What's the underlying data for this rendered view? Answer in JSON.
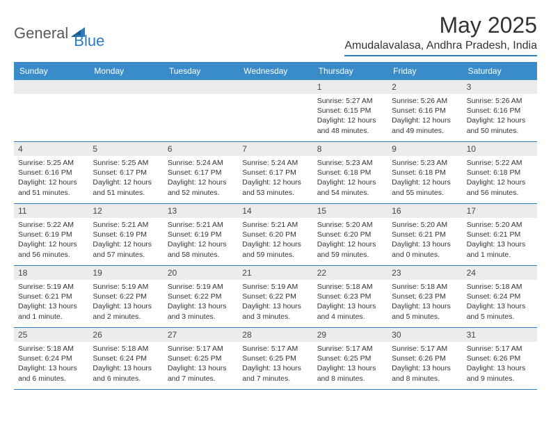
{
  "logo": {
    "general": "General",
    "blue": "Blue"
  },
  "title": "May 2025",
  "location": "Amudalavalasa, Andhra Pradesh, India",
  "dayNames": [
    "Sunday",
    "Monday",
    "Tuesday",
    "Wednesday",
    "Thursday",
    "Friday",
    "Saturday"
  ],
  "colors": {
    "headerBlue": "#3a8cc9",
    "accentBlue": "#2b7bbf",
    "grayBar": "#ececec",
    "text": "#333333",
    "logoGray": "#5a5a5a"
  },
  "weeks": [
    [
      {
        "n": "",
        "sunrise": "",
        "sunset": "",
        "daylight": ""
      },
      {
        "n": "",
        "sunrise": "",
        "sunset": "",
        "daylight": ""
      },
      {
        "n": "",
        "sunrise": "",
        "sunset": "",
        "daylight": ""
      },
      {
        "n": "",
        "sunrise": "",
        "sunset": "",
        "daylight": ""
      },
      {
        "n": "1",
        "sunrise": "Sunrise: 5:27 AM",
        "sunset": "Sunset: 6:15 PM",
        "daylight": "Daylight: 12 hours and 48 minutes."
      },
      {
        "n": "2",
        "sunrise": "Sunrise: 5:26 AM",
        "sunset": "Sunset: 6:16 PM",
        "daylight": "Daylight: 12 hours and 49 minutes."
      },
      {
        "n": "3",
        "sunrise": "Sunrise: 5:26 AM",
        "sunset": "Sunset: 6:16 PM",
        "daylight": "Daylight: 12 hours and 50 minutes."
      }
    ],
    [
      {
        "n": "4",
        "sunrise": "Sunrise: 5:25 AM",
        "sunset": "Sunset: 6:16 PM",
        "daylight": "Daylight: 12 hours and 51 minutes."
      },
      {
        "n": "5",
        "sunrise": "Sunrise: 5:25 AM",
        "sunset": "Sunset: 6:17 PM",
        "daylight": "Daylight: 12 hours and 51 minutes."
      },
      {
        "n": "6",
        "sunrise": "Sunrise: 5:24 AM",
        "sunset": "Sunset: 6:17 PM",
        "daylight": "Daylight: 12 hours and 52 minutes."
      },
      {
        "n": "7",
        "sunrise": "Sunrise: 5:24 AM",
        "sunset": "Sunset: 6:17 PM",
        "daylight": "Daylight: 12 hours and 53 minutes."
      },
      {
        "n": "8",
        "sunrise": "Sunrise: 5:23 AM",
        "sunset": "Sunset: 6:18 PM",
        "daylight": "Daylight: 12 hours and 54 minutes."
      },
      {
        "n": "9",
        "sunrise": "Sunrise: 5:23 AM",
        "sunset": "Sunset: 6:18 PM",
        "daylight": "Daylight: 12 hours and 55 minutes."
      },
      {
        "n": "10",
        "sunrise": "Sunrise: 5:22 AM",
        "sunset": "Sunset: 6:18 PM",
        "daylight": "Daylight: 12 hours and 56 minutes."
      }
    ],
    [
      {
        "n": "11",
        "sunrise": "Sunrise: 5:22 AM",
        "sunset": "Sunset: 6:19 PM",
        "daylight": "Daylight: 12 hours and 56 minutes."
      },
      {
        "n": "12",
        "sunrise": "Sunrise: 5:21 AM",
        "sunset": "Sunset: 6:19 PM",
        "daylight": "Daylight: 12 hours and 57 minutes."
      },
      {
        "n": "13",
        "sunrise": "Sunrise: 5:21 AM",
        "sunset": "Sunset: 6:19 PM",
        "daylight": "Daylight: 12 hours and 58 minutes."
      },
      {
        "n": "14",
        "sunrise": "Sunrise: 5:21 AM",
        "sunset": "Sunset: 6:20 PM",
        "daylight": "Daylight: 12 hours and 59 minutes."
      },
      {
        "n": "15",
        "sunrise": "Sunrise: 5:20 AM",
        "sunset": "Sunset: 6:20 PM",
        "daylight": "Daylight: 12 hours and 59 minutes."
      },
      {
        "n": "16",
        "sunrise": "Sunrise: 5:20 AM",
        "sunset": "Sunset: 6:21 PM",
        "daylight": "Daylight: 13 hours and 0 minutes."
      },
      {
        "n": "17",
        "sunrise": "Sunrise: 5:20 AM",
        "sunset": "Sunset: 6:21 PM",
        "daylight": "Daylight: 13 hours and 1 minute."
      }
    ],
    [
      {
        "n": "18",
        "sunrise": "Sunrise: 5:19 AM",
        "sunset": "Sunset: 6:21 PM",
        "daylight": "Daylight: 13 hours and 1 minute."
      },
      {
        "n": "19",
        "sunrise": "Sunrise: 5:19 AM",
        "sunset": "Sunset: 6:22 PM",
        "daylight": "Daylight: 13 hours and 2 minutes."
      },
      {
        "n": "20",
        "sunrise": "Sunrise: 5:19 AM",
        "sunset": "Sunset: 6:22 PM",
        "daylight": "Daylight: 13 hours and 3 minutes."
      },
      {
        "n": "21",
        "sunrise": "Sunrise: 5:19 AM",
        "sunset": "Sunset: 6:22 PM",
        "daylight": "Daylight: 13 hours and 3 minutes."
      },
      {
        "n": "22",
        "sunrise": "Sunrise: 5:18 AM",
        "sunset": "Sunset: 6:23 PM",
        "daylight": "Daylight: 13 hours and 4 minutes."
      },
      {
        "n": "23",
        "sunrise": "Sunrise: 5:18 AM",
        "sunset": "Sunset: 6:23 PM",
        "daylight": "Daylight: 13 hours and 5 minutes."
      },
      {
        "n": "24",
        "sunrise": "Sunrise: 5:18 AM",
        "sunset": "Sunset: 6:24 PM",
        "daylight": "Daylight: 13 hours and 5 minutes."
      }
    ],
    [
      {
        "n": "25",
        "sunrise": "Sunrise: 5:18 AM",
        "sunset": "Sunset: 6:24 PM",
        "daylight": "Daylight: 13 hours and 6 minutes."
      },
      {
        "n": "26",
        "sunrise": "Sunrise: 5:18 AM",
        "sunset": "Sunset: 6:24 PM",
        "daylight": "Daylight: 13 hours and 6 minutes."
      },
      {
        "n": "27",
        "sunrise": "Sunrise: 5:17 AM",
        "sunset": "Sunset: 6:25 PM",
        "daylight": "Daylight: 13 hours and 7 minutes."
      },
      {
        "n": "28",
        "sunrise": "Sunrise: 5:17 AM",
        "sunset": "Sunset: 6:25 PM",
        "daylight": "Daylight: 13 hours and 7 minutes."
      },
      {
        "n": "29",
        "sunrise": "Sunrise: 5:17 AM",
        "sunset": "Sunset: 6:25 PM",
        "daylight": "Daylight: 13 hours and 8 minutes."
      },
      {
        "n": "30",
        "sunrise": "Sunrise: 5:17 AM",
        "sunset": "Sunset: 6:26 PM",
        "daylight": "Daylight: 13 hours and 8 minutes."
      },
      {
        "n": "31",
        "sunrise": "Sunrise: 5:17 AM",
        "sunset": "Sunset: 6:26 PM",
        "daylight": "Daylight: 13 hours and 9 minutes."
      }
    ]
  ]
}
